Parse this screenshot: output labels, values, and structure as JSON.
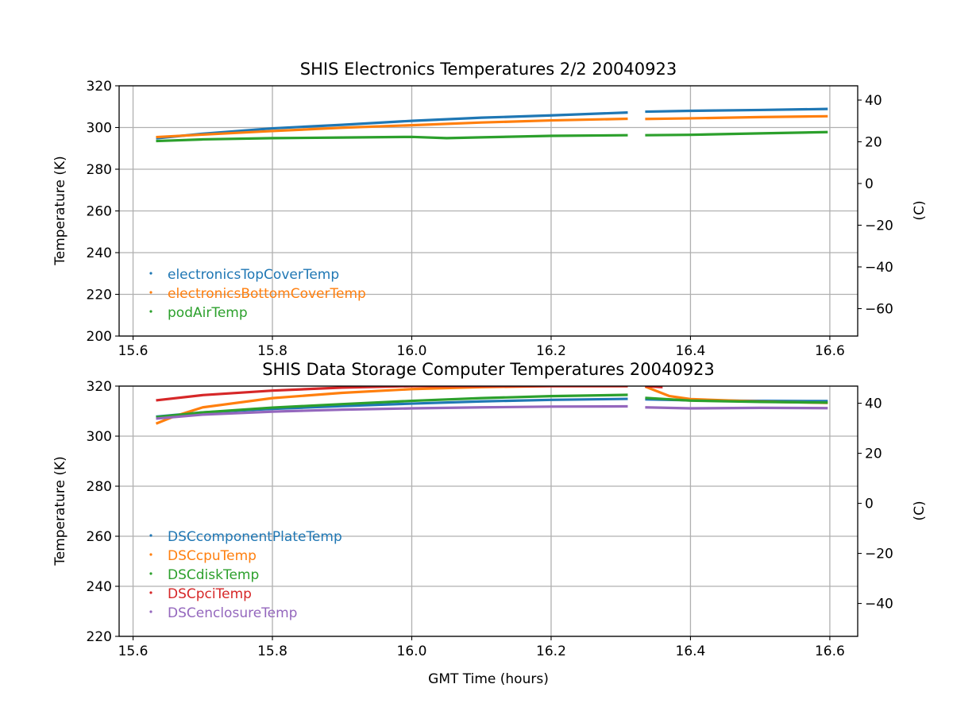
{
  "chart_data": [
    {
      "type": "line",
      "title": "SHIS Electronics Temperatures 2/2 20040923",
      "xlabel": "",
      "ylabel": "Temperature (K)",
      "ylabel_right": "(C)",
      "xlim": [
        15.58,
        16.64
      ],
      "ylim": [
        200,
        320
      ],
      "x_ticks": [
        15.6,
        15.8,
        16.0,
        16.2,
        16.4,
        16.6
      ],
      "x_tick_labels": [
        "15.6",
        "15.8",
        "16.0",
        "16.2",
        "16.4",
        "16.6"
      ],
      "y_ticks": [
        200,
        220,
        240,
        260,
        280,
        300,
        320
      ],
      "y_tick_labels": [
        "200",
        "220",
        "240",
        "260",
        "280",
        "300",
        "320"
      ],
      "y2_ticks": [
        -60,
        -40,
        -20,
        0,
        20,
        40
      ],
      "y2_tick_labels": [
        "−60",
        "−40",
        "−20",
        "0",
        "20",
        "40"
      ],
      "grid": true,
      "legend_position": "lower-left",
      "series": [
        {
          "name": "electronicsTopCoverTemp",
          "color": "#1f77b4",
          "segments": [
            [
              [
                15.633,
                294.8
              ],
              [
                15.7,
                297.0
              ],
              [
                15.8,
                299.6
              ],
              [
                15.9,
                301.3
              ],
              [
                16.0,
                303.2
              ],
              [
                16.1,
                304.7
              ],
              [
                16.2,
                305.8
              ],
              [
                16.31,
                307.2
              ]
            ],
            [
              [
                16.335,
                307.6
              ],
              [
                16.4,
                308.0
              ],
              [
                16.5,
                308.4
              ],
              [
                16.597,
                308.9
              ]
            ]
          ]
        },
        {
          "name": "electronicsBottomCoverTemp",
          "color": "#ff7f0e",
          "segments": [
            [
              [
                15.633,
                295.4
              ],
              [
                15.7,
                296.6
              ],
              [
                15.8,
                298.3
              ],
              [
                15.9,
                299.9
              ],
              [
                16.0,
                301.1
              ],
              [
                16.1,
                302.4
              ],
              [
                16.2,
                303.4
              ],
              [
                16.31,
                304.2
              ]
            ],
            [
              [
                16.335,
                304.1
              ],
              [
                16.4,
                304.4
              ],
              [
                16.5,
                305.0
              ],
              [
                16.597,
                305.4
              ]
            ]
          ]
        },
        {
          "name": "podAirTemp",
          "color": "#2ca02c",
          "segments": [
            [
              [
                15.633,
                293.5
              ],
              [
                15.7,
                294.3
              ],
              [
                15.8,
                294.9
              ],
              [
                15.9,
                295.2
              ],
              [
                16.0,
                295.5
              ],
              [
                16.05,
                294.9
              ],
              [
                16.1,
                295.3
              ],
              [
                16.2,
                296.0
              ],
              [
                16.31,
                296.3
              ]
            ],
            [
              [
                16.335,
                296.3
              ],
              [
                16.4,
                296.5
              ],
              [
                16.5,
                297.2
              ],
              [
                16.597,
                297.8
              ]
            ]
          ]
        }
      ]
    },
    {
      "type": "line",
      "title": "SHIS Data Storage Computer Temperatures 20040923",
      "xlabel": "GMT Time (hours)",
      "ylabel": "Temperature (K)",
      "ylabel_right": "(C)",
      "xlim": [
        15.58,
        16.64
      ],
      "ylim": [
        220,
        320
      ],
      "x_ticks": [
        15.6,
        15.8,
        16.0,
        16.2,
        16.4,
        16.6
      ],
      "x_tick_labels": [
        "15.6",
        "15.8",
        "16.0",
        "16.2",
        "16.4",
        "16.6"
      ],
      "y_ticks": [
        220,
        240,
        260,
        280,
        300,
        320
      ],
      "y_tick_labels": [
        "220",
        "240",
        "260",
        "280",
        "300",
        "320"
      ],
      "y2_ticks": [
        -40,
        -20,
        0,
        20,
        40
      ],
      "y2_tick_labels": [
        "−40",
        "−20",
        "0",
        "20",
        "40"
      ],
      "grid": true,
      "legend_position": "lower-left",
      "series": [
        {
          "name": "DSCcomponentPlateTemp",
          "color": "#1f77b4",
          "segments": [
            [
              [
                15.633,
                307.8
              ],
              [
                15.7,
                309.5
              ],
              [
                15.8,
                310.9
              ],
              [
                15.9,
                312.0
              ],
              [
                16.0,
                313.0
              ],
              [
                16.1,
                313.9
              ],
              [
                16.2,
                314.5
              ],
              [
                16.31,
                314.9
              ]
            ],
            [
              [
                16.335,
                314.7
              ],
              [
                16.4,
                314.3
              ],
              [
                16.5,
                314.1
              ],
              [
                16.597,
                314.0
              ]
            ]
          ]
        },
        {
          "name": "DSCcpuTemp",
          "color": "#ff7f0e",
          "segments": [
            [
              [
                15.633,
                305.0
              ],
              [
                15.66,
                308.0
              ],
              [
                15.7,
                311.5
              ],
              [
                15.8,
                315.2
              ],
              [
                15.9,
                317.3
              ],
              [
                16.0,
                318.8
              ],
              [
                16.1,
                319.6
              ],
              [
                16.2,
                320.0
              ],
              [
                16.31,
                320.0
              ]
            ],
            [
              [
                16.335,
                319.8
              ],
              [
                16.37,
                316.0
              ],
              [
                16.4,
                314.8
              ],
              [
                16.5,
                313.8
              ],
              [
                16.597,
                313.3
              ]
            ]
          ]
        },
        {
          "name": "DSCdiskTemp",
          "color": "#2ca02c",
          "segments": [
            [
              [
                15.633,
                307.6
              ],
              [
                15.7,
                309.5
              ],
              [
                15.8,
                311.4
              ],
              [
                15.9,
                312.8
              ],
              [
                16.0,
                314.1
              ],
              [
                16.1,
                315.2
              ],
              [
                16.2,
                316.0
              ],
              [
                16.31,
                316.5
              ]
            ],
            [
              [
                16.335,
                315.3
              ],
              [
                16.4,
                314.2
              ],
              [
                16.5,
                313.7
              ],
              [
                16.597,
                313.4
              ]
            ]
          ]
        },
        {
          "name": "DSCpciTemp",
          "color": "#d62728",
          "segments": [
            [
              [
                15.633,
                314.3
              ],
              [
                15.7,
                316.4
              ],
              [
                15.8,
                318.2
              ],
              [
                15.9,
                319.4
              ],
              [
                16.0,
                320.0
              ],
              [
                16.31,
                320.0
              ]
            ],
            [
              [
                16.335,
                320.0
              ],
              [
                16.36,
                319.6
              ]
            ]
          ]
        },
        {
          "name": "DSCenclosureTemp",
          "color": "#9467bd",
          "segments": [
            [
              [
                15.633,
                307.0
              ],
              [
                15.7,
                308.6
              ],
              [
                15.8,
                309.8
              ],
              [
                15.9,
                310.6
              ],
              [
                16.0,
                311.1
              ],
              [
                16.1,
                311.5
              ],
              [
                16.2,
                311.8
              ],
              [
                16.31,
                311.9
              ]
            ],
            [
              [
                16.335,
                311.5
              ],
              [
                16.4,
                311.1
              ],
              [
                16.5,
                311.3
              ],
              [
                16.597,
                311.2
              ]
            ]
          ]
        }
      ]
    }
  ]
}
